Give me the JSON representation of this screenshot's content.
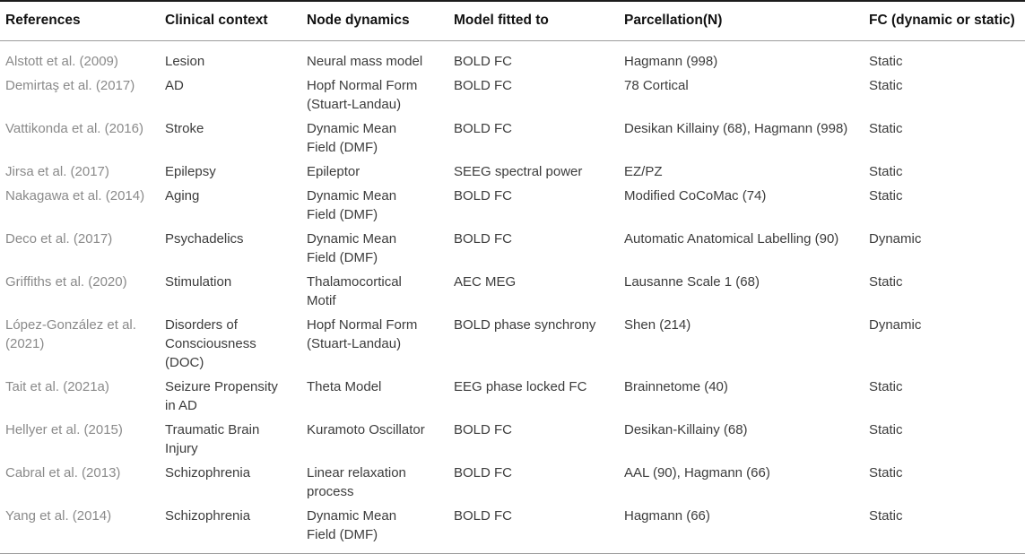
{
  "table": {
    "column_keys": [
      "reference",
      "clinical_context",
      "node_dynamics",
      "model_fitted_to",
      "parcellation",
      "fc"
    ],
    "columns": [
      {
        "label": "References"
      },
      {
        "label": "Clinical context"
      },
      {
        "label": "Node dynamics"
      },
      {
        "label": "Model fitted to"
      },
      {
        "label": "Parcellation(N)"
      },
      {
        "label": "FC (dynamic or static)"
      }
    ],
    "rows": [
      {
        "reference": "Alstott et al. (2009)",
        "clinical_context": "Lesion",
        "node_dynamics": "Neural mass model",
        "model_fitted_to": "BOLD FC",
        "parcellation": "Hagmann (998)",
        "fc": "Static"
      },
      {
        "reference": "Demirtaş et al. (2017)",
        "clinical_context": "AD",
        "node_dynamics": "Hopf Normal Form\n(Stuart-Landau)",
        "model_fitted_to": "BOLD FC",
        "parcellation": "78 Cortical",
        "fc": "Static"
      },
      {
        "reference": "Vattikonda et al. (2016)",
        "clinical_context": "Stroke",
        "node_dynamics": "Dynamic Mean\nField (DMF)",
        "model_fitted_to": "BOLD FC",
        "parcellation": "Desikan Killainy (68), Hagmann (998)",
        "fc": "Static"
      },
      {
        "reference": "Jirsa et al. (2017)",
        "clinical_context": "Epilepsy",
        "node_dynamics": "Epileptor",
        "model_fitted_to": "SEEG spectral power",
        "parcellation": "EZ/PZ",
        "fc": "Static"
      },
      {
        "reference": "Nakagawa et al. (2014)",
        "clinical_context": "Aging",
        "node_dynamics": "Dynamic Mean\nField (DMF)",
        "model_fitted_to": "BOLD FC",
        "parcellation": "Modified CoCoMac (74)",
        "fc": "Static"
      },
      {
        "reference": "Deco et al. (2017)",
        "clinical_context": "Psychadelics",
        "node_dynamics": "Dynamic Mean\nField (DMF)",
        "model_fitted_to": "BOLD FC",
        "parcellation": "Automatic Anatomical Labelling (90)",
        "fc": "Dynamic"
      },
      {
        "reference": "Griffiths et al. (2020)",
        "clinical_context": "Stimulation",
        "node_dynamics": "Thalamocortical\nMotif",
        "model_fitted_to": "AEC MEG",
        "parcellation": "Lausanne Scale 1 (68)",
        "fc": "Static"
      },
      {
        "reference": "López-González et al.\n(2021)",
        "clinical_context": "Disorders of\nConsciousness\n(DOC)",
        "node_dynamics": "Hopf Normal Form\n(Stuart-Landau)",
        "model_fitted_to": "BOLD phase synchrony",
        "parcellation": "Shen (214)",
        "fc": "Dynamic"
      },
      {
        "reference": "Tait et al. (2021a)",
        "clinical_context": "Seizure Propensity\nin AD",
        "node_dynamics": "Theta Model",
        "model_fitted_to": "EEG phase locked FC",
        "parcellation": "Brainnetome (40)",
        "fc": "Static"
      },
      {
        "reference": "Hellyer et al. (2015)",
        "clinical_context": "Traumatic Brain\nInjury",
        "node_dynamics": "Kuramoto Oscillator",
        "model_fitted_to": "BOLD FC",
        "parcellation": "Desikan-Killainy (68)",
        "fc": "Static"
      },
      {
        "reference": "Cabral et al. (2013)",
        "clinical_context": "Schizophrenia",
        "node_dynamics": "Linear relaxation\nprocess",
        "model_fitted_to": "BOLD FC",
        "parcellation": "AAL (90), Hagmann (66)",
        "fc": "Static"
      },
      {
        "reference": "Yang et al. (2014)",
        "clinical_context": "Schizophrenia",
        "node_dynamics": "Dynamic Mean\nField (DMF)",
        "model_fitted_to": "BOLD FC",
        "parcellation": "Hagmann (66)",
        "fc": "Static"
      }
    ]
  },
  "colors": {
    "background": "#ffffff",
    "top_rule": "#1c1c1c",
    "light_rule": "#9c9c9c",
    "header_text": "#121212",
    "body_text": "#3c3c3c",
    "reference_text": "#8a8a8a"
  }
}
